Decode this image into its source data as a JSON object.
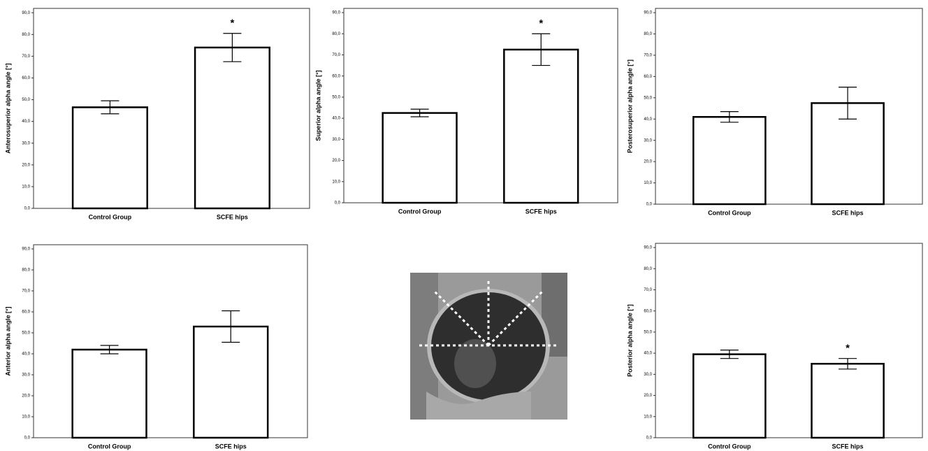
{
  "chart_data": [
    {
      "type": "bar",
      "ylabel": "Anterosuperior alpha angle [°]",
      "categories": [
        "Control Group",
        "SCFE hips"
      ],
      "values": [
        46.5,
        74
      ],
      "errors": [
        3,
        6.5
      ],
      "significance": [
        null,
        "*"
      ],
      "color": "#ffffff",
      "ylim": [
        0,
        92
      ],
      "yticks": [
        {
          "value": 0,
          "label": "0,0"
        },
        {
          "value": 10,
          "label": "10,0"
        },
        {
          "value": 20,
          "label": "20,0"
        },
        {
          "value": 30,
          "label": "30,0"
        },
        {
          "value": 40,
          "label": "40,0"
        },
        {
          "value": 50,
          "label": "50,0"
        },
        {
          "value": 60,
          "label": "60,0"
        },
        {
          "value": 70,
          "label": "70,0"
        },
        {
          "value": 80,
          "label": "80,0"
        },
        {
          "value": 90,
          "label": "90,0"
        }
      ]
    },
    {
      "type": "bar",
      "ylabel": "Superior alpha angle [°]",
      "categories": [
        "Control Group",
        "SCFE hips"
      ],
      "values": [
        42.5,
        72.5
      ],
      "errors": [
        1.8,
        7.5
      ],
      "significance": [
        null,
        "*"
      ],
      "color": "#ffffff",
      "ylim": [
        0,
        92
      ],
      "yticks": [
        {
          "value": 0,
          "label": "0,0"
        },
        {
          "value": 10,
          "label": "10,0"
        },
        {
          "value": 20,
          "label": "20,0"
        },
        {
          "value": 30,
          "label": "30,0"
        },
        {
          "value": 40,
          "label": "40,0"
        },
        {
          "value": 50,
          "label": "50,0"
        },
        {
          "value": 60,
          "label": "60,0"
        },
        {
          "value": 70,
          "label": "70,0"
        },
        {
          "value": 80,
          "label": "80,0"
        },
        {
          "value": 90,
          "label": "90,0"
        }
      ]
    },
    {
      "type": "bar",
      "ylabel": "Posterosuperior alpha angle [°]",
      "categories": [
        "Control Group",
        "SCFE hips"
      ],
      "values": [
        41,
        47.5
      ],
      "errors": [
        2.5,
        7.5
      ],
      "significance": [
        null,
        null
      ],
      "color": "#ffffff",
      "ylim": [
        0,
        92
      ],
      "yticks": [
        {
          "value": 0,
          "label": "0,0"
        },
        {
          "value": 10,
          "label": "10,0"
        },
        {
          "value": 20,
          "label": "20,0"
        },
        {
          "value": 30,
          "label": "30,0"
        },
        {
          "value": 40,
          "label": "40,0"
        },
        {
          "value": 50,
          "label": "50,0"
        },
        {
          "value": 60,
          "label": "60,0"
        },
        {
          "value": 70,
          "label": "70,0"
        },
        {
          "value": 80,
          "label": "80,0"
        },
        {
          "value": 90,
          "label": "90,0"
        }
      ]
    },
    {
      "type": "bar",
      "ylabel": "Anterior alpha angle [°]",
      "categories": [
        "Control Group",
        "SCFE hips"
      ],
      "values": [
        42,
        53
      ],
      "errors": [
        2,
        7.5
      ],
      "significance": [
        null,
        null
      ],
      "color": "#ffffff",
      "ylim": [
        0,
        92
      ],
      "yticks": [
        {
          "value": 0,
          "label": "0,0"
        },
        {
          "value": 10,
          "label": "10,0"
        },
        {
          "value": 20,
          "label": "20,0"
        },
        {
          "value": 30,
          "label": "30,0"
        },
        {
          "value": 40,
          "label": "40,0"
        },
        {
          "value": 50,
          "label": "50,0"
        },
        {
          "value": 60,
          "label": "60,0"
        },
        {
          "value": 70,
          "label": "70,0"
        },
        {
          "value": 80,
          "label": "80,0"
        },
        {
          "value": 90,
          "label": "90,0"
        }
      ]
    },
    {
      "type": "bar",
      "ylabel": "Posterior alpha angle [°]",
      "categories": [
        "Control Group",
        "SCFE hips"
      ],
      "values": [
        39.5,
        35
      ],
      "errors": [
        2,
        2.5
      ],
      "significance": [
        null,
        "*"
      ],
      "color": "#ffffff",
      "ylim": [
        0,
        92
      ],
      "yticks": [
        {
          "value": 0,
          "label": "0,0"
        },
        {
          "value": 10,
          "label": "10,0"
        },
        {
          "value": 20,
          "label": "20,0"
        },
        {
          "value": 30,
          "label": "30,0"
        },
        {
          "value": 40,
          "label": "40,0"
        },
        {
          "value": 50,
          "label": "50,0"
        },
        {
          "value": 60,
          "label": "60,0"
        },
        {
          "value": 70,
          "label": "70,0"
        },
        {
          "value": 80,
          "label": "80,0"
        },
        {
          "value": 90,
          "label": "90,0"
        }
      ]
    }
  ]
}
